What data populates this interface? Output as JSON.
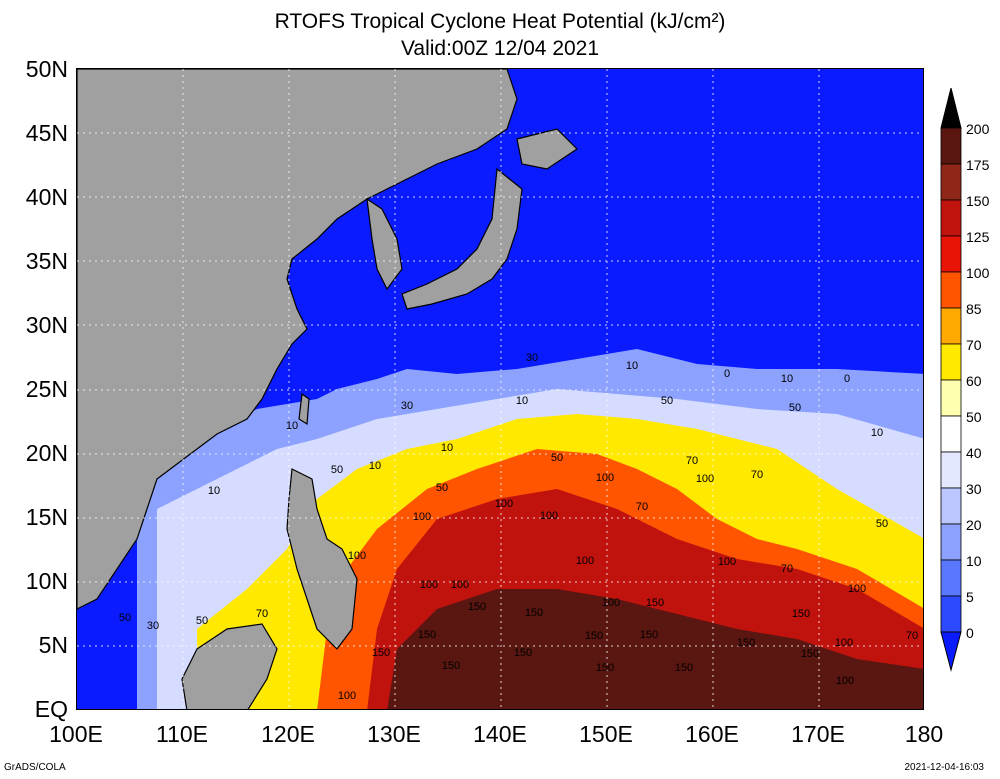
{
  "title": {
    "line1": "RTOFS Tropical Cyclone Heat Potential (kJ/cm²)",
    "line2": "Valid:00Z 12/04 2021"
  },
  "lat_labels": [
    "50N",
    "45N",
    "40N",
    "35N",
    "30N",
    "25N",
    "20N",
    "15N",
    "10N",
    "5N",
    "EQ"
  ],
  "lon_labels": [
    "100E",
    "110E",
    "120E",
    "130E",
    "140E",
    "150E",
    "160E",
    "170E",
    "180"
  ],
  "colorbar": {
    "levels": [
      "0",
      "5",
      "10",
      "20",
      "30",
      "40",
      "50",
      "60",
      "70",
      "85",
      "100",
      "125",
      "150",
      "175",
      "200"
    ],
    "colors": [
      "#0a1cff",
      "#2d4aff",
      "#5a78ff",
      "#8da2ff",
      "#bcc6ff",
      "#e4e8ff",
      "#ffffff",
      "#ffffb0",
      "#ffe900",
      "#ffa800",
      "#ff5400",
      "#e81408",
      "#c0130e",
      "#8e2718",
      "#5a1610",
      "#3a0a06"
    ],
    "arrow_low_color": "#0a1cff",
    "arrow_high_color": "#000000"
  },
  "map_colors": {
    "land": "#a0a0a0",
    "ocean_cold": "#0a1cff",
    "coast": "#000000"
  },
  "contour_labels": [
    "0",
    "10",
    "30",
    "50",
    "70",
    "100",
    "150"
  ],
  "footer": {
    "left": "GrADS/COLA",
    "right": "2021-12-04-16:03"
  }
}
